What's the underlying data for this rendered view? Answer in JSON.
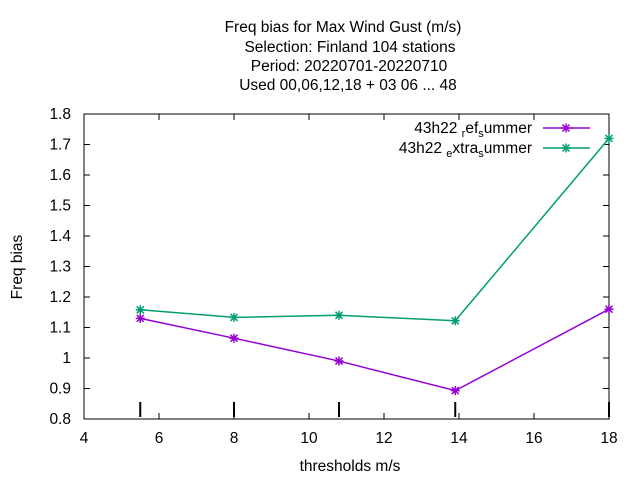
{
  "title_lines": [
    "Freq bias  for Max Wind Gust (m/s)",
    "Selection: Finland    104 stations",
    "Period: 20220701-20220710",
    "Used  00,06,12,18  + 03 06 ... 48"
  ],
  "chart_data": {
    "type": "line",
    "xlabel": "thresholds m/s",
    "ylabel": "Freq bias",
    "xlim": [
      4,
      18
    ],
    "ylim": [
      0.8,
      1.8
    ],
    "xticks": [
      "4",
      "6",
      "8",
      "10",
      "12",
      "14",
      "16",
      "18"
    ],
    "yticks": [
      "0.8",
      "0.9",
      "1",
      "1.1",
      "1.2",
      "1.3",
      "1.4",
      "1.5",
      "1.6",
      "1.7",
      "1.8"
    ],
    "grid": false,
    "legend_position": "top-right",
    "threshold_markers": [
      5.5,
      8,
      10.8,
      13.9,
      18
    ],
    "series": [
      {
        "name": "43h22_ref_summer",
        "legend_parts": [
          [
            "43h22 ",
            "n"
          ],
          [
            "r",
            "sub"
          ],
          [
            "ef",
            "n"
          ],
          [
            "s",
            "sub"
          ],
          [
            "ummer",
            "n"
          ]
        ],
        "color": "#9400d3",
        "x": [
          5.5,
          8,
          10.8,
          13.9,
          18
        ],
        "y": [
          1.13,
          1.065,
          0.99,
          0.893,
          1.16
        ]
      },
      {
        "name": "43h22_extra_summer",
        "legend_parts": [
          [
            "43h22 ",
            "n"
          ],
          [
            "e",
            "sub"
          ],
          [
            "xtra",
            "n"
          ],
          [
            "s",
            "sub"
          ],
          [
            "ummer",
            "n"
          ]
        ],
        "color": "#009e73",
        "x": [
          5.5,
          8,
          10.8,
          13.9,
          18
        ],
        "y": [
          1.158,
          1.133,
          1.14,
          1.122,
          1.72
        ]
      }
    ]
  }
}
